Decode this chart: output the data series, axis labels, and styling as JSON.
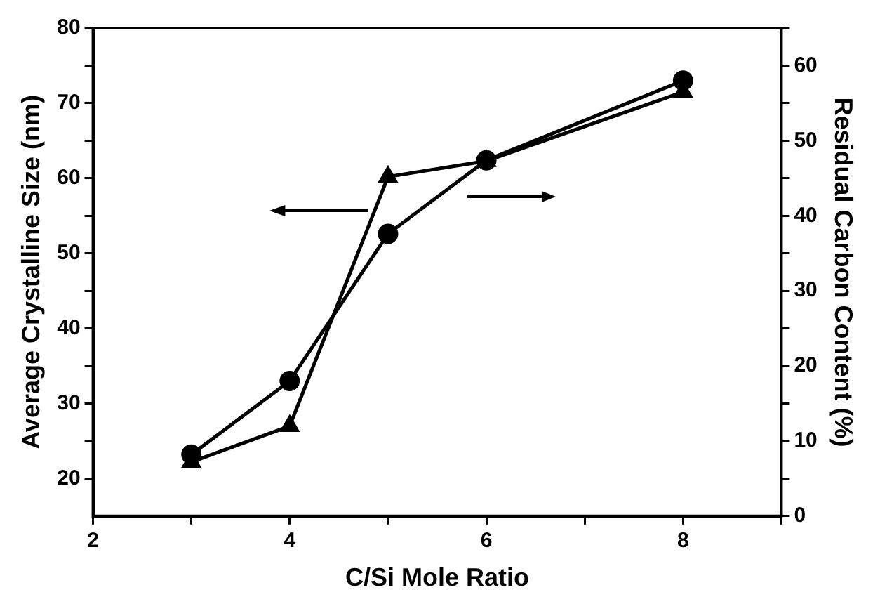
{
  "chart_data": {
    "type": "line",
    "xlabel": "C/Si Mole Ratio",
    "ylabel": "Average Crystalline Size (nm)",
    "y2label": "Residual Carbon Content (%)",
    "x": [
      3,
      4,
      5,
      6,
      8
    ],
    "series": [
      {
        "color": "#000000",
        "marker": "triangle",
        "values": [
          22.2,
          27.0,
          60.2,
          62.3,
          71.5
        ]
      },
      {
        "color": "#000000",
        "marker": "circle",
        "axis": "y2",
        "values": [
          8.2,
          18.0,
          37.6,
          47.4,
          58.0
        ]
      }
    ],
    "xlim": [
      2,
      9
    ],
    "xticks": [
      2,
      {
        "value": 3,
        "label": null
      },
      4,
      {
        "value": 5,
        "label": null
      },
      6,
      {
        "value": 7,
        "label": null
      },
      8,
      {
        "value": 9,
        "label": null
      }
    ],
    "ylim": [
      15,
      80
    ],
    "yticks": [
      20,
      {
        "value": 25,
        "label": null
      },
      30,
      {
        "value": 35,
        "label": null
      },
      40,
      {
        "value": 45,
        "label": null
      },
      50,
      {
        "value": 55,
        "label": null
      },
      60,
      {
        "value": 65,
        "label": null
      },
      70,
      {
        "value": 75,
        "label": null
      },
      80
    ],
    "y2lim": [
      0,
      65
    ],
    "y2ticks": [
      0,
      {
        "value": 5,
        "label": null
      },
      10,
      {
        "value": 15,
        "label": null
      },
      20,
      {
        "value": 25,
        "label": null
      },
      30,
      {
        "value": 35,
        "label": null
      },
      40,
      {
        "value": 45,
        "label": null
      },
      50,
      {
        "value": 55,
        "label": null
      },
      60,
      {
        "value": 65,
        "label": null
      }
    ],
    "grid": false,
    "legend": false,
    "line_style": "solid"
  }
}
